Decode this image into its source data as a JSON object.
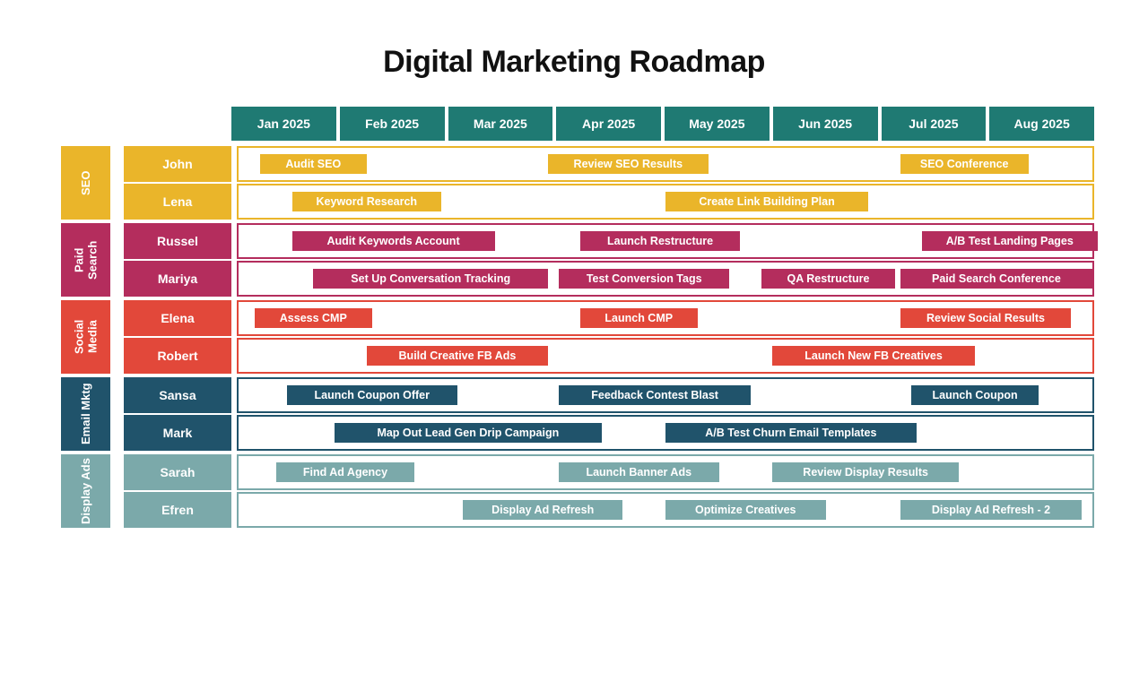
{
  "title": "Digital Marketing Roadmap",
  "months_bg": "#1f7a73",
  "months": [
    "Jan 2025",
    "Feb 2025",
    "Mar 2025",
    "Apr 2025",
    "May 2025",
    "Jun 2025",
    "Jul 2025",
    "Aug 2025"
  ],
  "totalMonths": 8,
  "categories": [
    {
      "name": "SEO",
      "color": "#eab52a",
      "rows": [
        {
          "person": "John",
          "tasks": [
            {
              "label": "Audit SEO",
              "start": 0.2,
              "width": 1.0
            },
            {
              "label": "Review SEO Results",
              "start": 2.9,
              "width": 1.5
            },
            {
              "label": "SEO Conference",
              "start": 6.2,
              "width": 1.2
            }
          ]
        },
        {
          "person": "Lena",
          "tasks": [
            {
              "label": "Keyword Research",
              "start": 0.5,
              "width": 1.4
            },
            {
              "label": "Create Link Building Plan",
              "start": 4.0,
              "width": 1.9
            }
          ]
        }
      ]
    },
    {
      "name": "Paid Search",
      "color": "#b42d5d",
      "rows": [
        {
          "person": "Russel",
          "tasks": [
            {
              "label": "Audit Keywords Account",
              "start": 0.5,
              "width": 1.9
            },
            {
              "label": "Launch Restructure",
              "start": 3.2,
              "width": 1.5
            },
            {
              "label": "A/B Test Landing Pages",
              "start": 6.4,
              "width": 1.65
            }
          ]
        },
        {
          "person": "Mariya",
          "tasks": [
            {
              "label": "Set Up Conversation Tracking",
              "start": 0.7,
              "width": 2.2
            },
            {
              "label": "Test Conversion Tags",
              "start": 3.0,
              "width": 1.6
            },
            {
              "label": "QA Restructure",
              "start": 4.9,
              "width": 1.25
            },
            {
              "label": "Paid Search Conference",
              "start": 6.2,
              "width": 1.8
            }
          ]
        }
      ]
    },
    {
      "name": "Social Media",
      "color": "#e2483a",
      "rows": [
        {
          "person": "Elena",
          "tasks": [
            {
              "label": "Assess CMP",
              "start": 0.15,
              "width": 1.1
            },
            {
              "label": "Launch CMP",
              "start": 3.2,
              "width": 1.1
            },
            {
              "label": "Review Social Results",
              "start": 6.2,
              "width": 1.6
            }
          ]
        },
        {
          "person": "Robert",
          "tasks": [
            {
              "label": "Build Creative FB Ads",
              "start": 1.2,
              "width": 1.7
            },
            {
              "label": "Launch New FB Creatives",
              "start": 5.0,
              "width": 1.9
            }
          ]
        }
      ]
    },
    {
      "name": "Email Mktg",
      "color": "#20536b",
      "rows": [
        {
          "person": "Sansa",
          "tasks": [
            {
              "label": "Launch Coupon Offer",
              "start": 0.45,
              "width": 1.6
            },
            {
              "label": "Feedback Contest Blast",
              "start": 3.0,
              "width": 1.8
            },
            {
              "label": "Launch Coupon",
              "start": 6.3,
              "width": 1.2
            }
          ]
        },
        {
          "person": "Mark",
          "tasks": [
            {
              "label": "Map Out Lead Gen Drip Campaign",
              "start": 0.9,
              "width": 2.5
            },
            {
              "label": "A/B Test Churn Email Templates",
              "start": 4.0,
              "width": 2.35
            }
          ]
        }
      ]
    },
    {
      "name": "Display Ads",
      "color": "#7ba9aa",
      "rows": [
        {
          "person": "Sarah",
          "tasks": [
            {
              "label": "Find Ad Agency",
              "start": 0.35,
              "width": 1.3
            },
            {
              "label": "Launch Banner Ads",
              "start": 3.0,
              "width": 1.5
            },
            {
              "label": "Review Display Results",
              "start": 5.0,
              "width": 1.75
            }
          ]
        },
        {
          "person": "Efren",
          "tasks": [
            {
              "label": "Display Ad Refresh",
              "start": 2.1,
              "width": 1.5
            },
            {
              "label": "Optimize Creatives",
              "start": 4.0,
              "width": 1.5
            },
            {
              "label": "Display Ad Refresh - 2",
              "start": 6.2,
              "width": 1.7
            }
          ]
        }
      ]
    }
  ]
}
